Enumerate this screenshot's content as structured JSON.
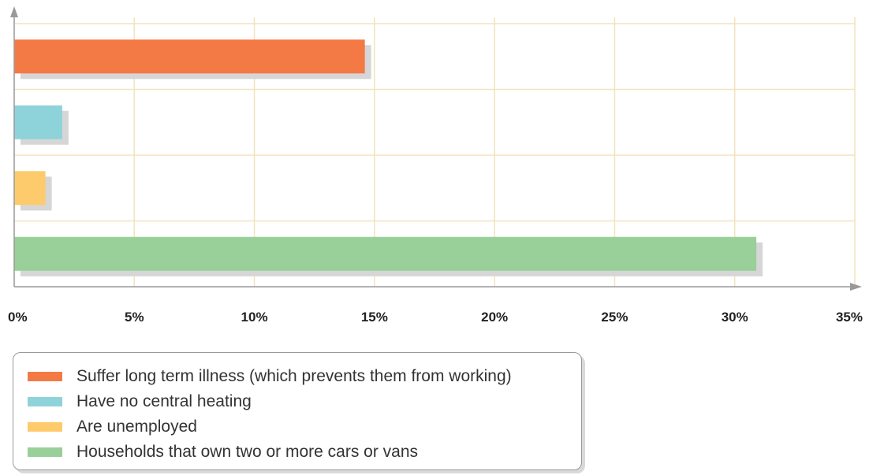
{
  "chart_data": {
    "type": "bar",
    "orientation": "horizontal",
    "title": "",
    "xlabel": "",
    "ylabel": "",
    "xlim": [
      0,
      35
    ],
    "x_tick_values": [
      0,
      5,
      10,
      15,
      20,
      25,
      30,
      35
    ],
    "x_tick_labels": [
      "0%",
      "5%",
      "10%",
      "15%",
      "20%",
      "25%",
      "30%",
      "35%"
    ],
    "grid": true,
    "legend_position": "bottom-left",
    "series": [
      {
        "name": "Suffer long term illness (which prevents them from working)",
        "value": 14.6,
        "color": "#f47a45"
      },
      {
        "name": "Have no central heating",
        "value": 2.0,
        "color": "#8fd3da"
      },
      {
        "name": "Are unemployed",
        "value": 1.3,
        "color": "#fdcb6c"
      },
      {
        "name": "Households that own two or more cars or vans",
        "value": 30.9,
        "color": "#99cf98"
      }
    ]
  }
}
